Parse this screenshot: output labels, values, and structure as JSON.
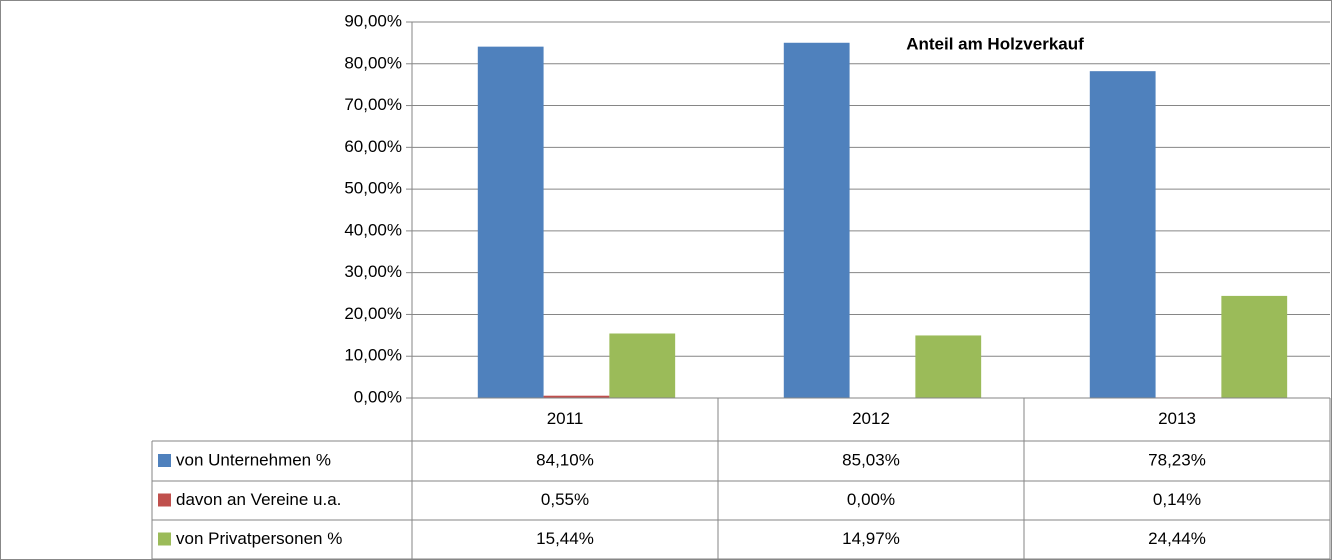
{
  "chart_data": {
    "type": "bar",
    "title": "Anteil am Holzverkauf",
    "categories": [
      "2011",
      "2012",
      "2013"
    ],
    "series": [
      {
        "name": "von Unternehmen %",
        "color": "#4f81bd",
        "values": [
          84.1,
          85.03,
          78.23
        ],
        "value_labels": [
          "84,10%",
          "85,03%",
          "78,23%"
        ]
      },
      {
        "name": "davon an Vereine u.a.",
        "color": "#c0504d",
        "values": [
          0.55,
          0.0,
          0.14
        ],
        "value_labels": [
          "0,55%",
          "0,00%",
          "0,14%"
        ]
      },
      {
        "name": "von Privatpersonen %",
        "color": "#9bbb59",
        "values": [
          15.44,
          14.97,
          24.44
        ],
        "value_labels": [
          "15,44%",
          "14,97%",
          "24,44%"
        ]
      }
    ],
    "ylim": [
      0,
      90
    ],
    "yticks": [
      {
        "value": 0,
        "label": "0,00%"
      },
      {
        "value": 10,
        "label": "10,00%"
      },
      {
        "value": 20,
        "label": "20,00%"
      },
      {
        "value": 30,
        "label": "30,00%"
      },
      {
        "value": 40,
        "label": "40,00%"
      },
      {
        "value": 50,
        "label": "50,00%"
      },
      {
        "value": 60,
        "label": "60,00%"
      },
      {
        "value": 70,
        "label": "70,00%"
      },
      {
        "value": 80,
        "label": "80,00%"
      },
      {
        "value": 90,
        "label": "90,00%"
      }
    ],
    "grid": true
  }
}
